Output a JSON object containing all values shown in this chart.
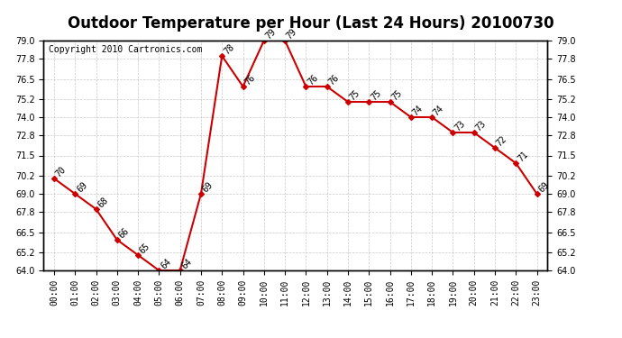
{
  "title": "Outdoor Temperature per Hour (Last 24 Hours) 20100730",
  "copyright": "Copyright 2010 Cartronics.com",
  "hours": [
    "00:00",
    "01:00",
    "02:00",
    "03:00",
    "04:00",
    "05:00",
    "06:00",
    "07:00",
    "08:00",
    "09:00",
    "10:00",
    "11:00",
    "12:00",
    "13:00",
    "14:00",
    "15:00",
    "16:00",
    "17:00",
    "18:00",
    "19:00",
    "20:00",
    "21:00",
    "22:00",
    "23:00"
  ],
  "temps": [
    70,
    69,
    68,
    66,
    65,
    64,
    64,
    69,
    78,
    76,
    79,
    79,
    76,
    76,
    75,
    75,
    75,
    74,
    74,
    73,
    73,
    72,
    71,
    69
  ],
  "ylim_min": 64.0,
  "ylim_max": 79.0,
  "yticks": [
    64.0,
    65.2,
    66.5,
    67.8,
    69.0,
    70.2,
    71.5,
    72.8,
    74.0,
    75.2,
    76.5,
    77.8,
    79.0
  ],
  "line_color": "#cc0000",
  "marker": "D",
  "marker_size": 3,
  "bg_color": "#ffffff",
  "grid_color": "#bbbbbb",
  "title_fontsize": 12,
  "copyright_fontsize": 7,
  "label_fontsize": 7,
  "tick_fontsize": 7
}
